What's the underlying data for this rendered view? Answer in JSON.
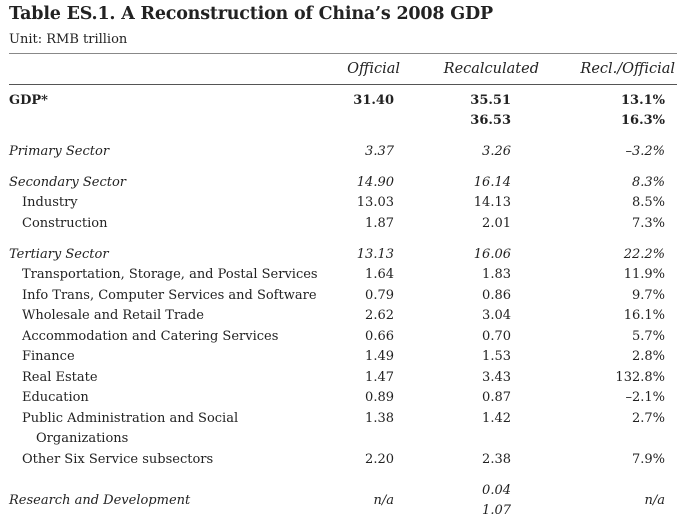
{
  "title": "Table ES.1.  A Reconstruction of China’s 2008 GDP",
  "unit": "Unit: RMB trillion",
  "headers": {
    "official": "Official",
    "recalculated": "Recalculated",
    "ratio": "Recl./Official"
  },
  "rows": {
    "gdp": {
      "label": "GDP*",
      "official": "31.40",
      "recalc": "35.51",
      "ratio": "13.1%",
      "recalc2": "36.53",
      "ratio2": "16.3%"
    },
    "primary": {
      "label": "Primary Sector",
      "official": "3.37",
      "recalc": "3.26",
      "ratio": "–3.2%"
    },
    "secondary": {
      "label": "Secondary Sector",
      "official": "14.90",
      "recalc": "16.14",
      "ratio": "8.3%"
    },
    "industry": {
      "label": "Industry",
      "official": "13.03",
      "recalc": "14.13",
      "ratio": "8.5%"
    },
    "construction": {
      "label": "Construction",
      "official": "1.87",
      "recalc": "2.01",
      "ratio": "7.3%"
    },
    "tertiary": {
      "label": "Tertiary Sector",
      "official": "13.13",
      "recalc": "16.06",
      "ratio": "22.2%"
    },
    "transport": {
      "label": "Transportation, Storage, and Postal Services",
      "official": "1.64",
      "recalc": "1.83",
      "ratio": "11.9%"
    },
    "info": {
      "label": "Info Trans, Computer Services and Software",
      "official": "0.79",
      "recalc": "0.86",
      "ratio": "9.7%"
    },
    "wholesale": {
      "label": "Wholesale and Retail Trade",
      "official": "2.62",
      "recalc": "3.04",
      "ratio": "16.1%"
    },
    "accommodation": {
      "label": "Accommodation and Catering Services",
      "official": "0.66",
      "recalc": "0.70",
      "ratio": "5.7%"
    },
    "finance": {
      "label": "Finance",
      "official": "1.49",
      "recalc": "1.53",
      "ratio": "2.8%"
    },
    "realestate": {
      "label": "Real Estate",
      "official": "1.47",
      "recalc": "3.43",
      "ratio": "132.8%"
    },
    "education": {
      "label": "Education",
      "official": "0.89",
      "recalc": "0.87",
      "ratio": "–2.1%"
    },
    "publicadmin": {
      "label": "Public Administration and Social",
      "label2": "Organizations",
      "official": "1.38",
      "recalc": "1.42",
      "ratio": "2.7%"
    },
    "other": {
      "label": "Other Six Service subsectors",
      "official": "2.20",
      "recalc": "2.38",
      "ratio": "7.9%"
    },
    "rnd": {
      "label": "Research and Development",
      "official": "n/a",
      "recalc": "0.04",
      "recalc2": "1.07",
      "ratio": "n/a"
    }
  }
}
